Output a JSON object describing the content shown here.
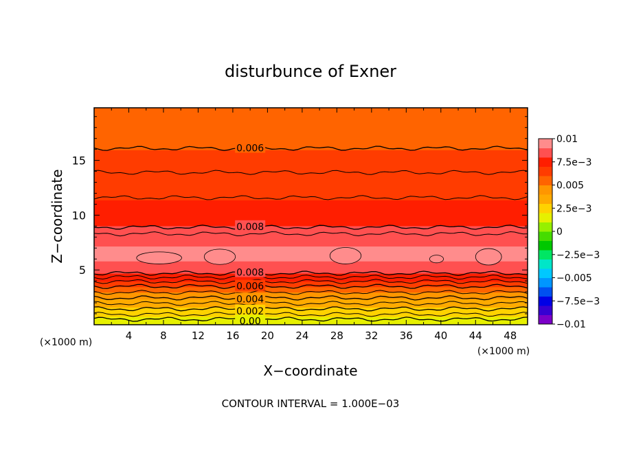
{
  "chart_data": {
    "type": "heatmap",
    "title": "disturbunce of Exner",
    "xlabel": "X−coordinate",
    "ylabel": "Z−coordinate",
    "x_unit": "(×1000 m)",
    "y_unit": "(×1000 m)",
    "footer": "CONTOUR INTERVAL = 1.000E−03",
    "xlim": [
      0,
      50
    ],
    "ylim": [
      0,
      19.8
    ],
    "x_ticks": [
      4,
      8,
      12,
      16,
      20,
      24,
      28,
      32,
      36,
      40,
      44,
      48
    ],
    "y_ticks": [
      5,
      10,
      15
    ],
    "colorbar": {
      "range": [
        -0.01,
        0.01
      ],
      "labels": [
        {
          "value": 0.01,
          "text": "0.01"
        },
        {
          "value": 0.0075,
          "text": "7.5e−3"
        },
        {
          "value": 0.005,
          "text": "0.005"
        },
        {
          "value": 0.0025,
          "text": "2.5e−3"
        },
        {
          "value": 0,
          "text": "0"
        },
        {
          "value": -0.0025,
          "text": "−2.5e−3"
        },
        {
          "value": -0.005,
          "text": "−0.005"
        },
        {
          "value": -0.0075,
          "text": "−7.5e−3"
        },
        {
          "value": -0.01,
          "text": "−0.01"
        }
      ],
      "colors": [
        "#7b00c8",
        "#3700d2",
        "#0000e6",
        "#0050f0",
        "#0096ff",
        "#00c8ff",
        "#00e6c8",
        "#00e664",
        "#00c800",
        "#46dc00",
        "#96f000",
        "#e6f000",
        "#ffd200",
        "#ffaa00",
        "#ff9600",
        "#ff6400",
        "#ff3c00",
        "#ff1e00",
        "#ff5050",
        "#ff8c8c"
      ]
    },
    "profile": [
      {
        "z": 0.0,
        "value": 0.0012
      },
      {
        "z": 1.0,
        "value": 0.0022
      },
      {
        "z": 2.0,
        "value": 0.0035
      },
      {
        "z": 3.0,
        "value": 0.005
      },
      {
        "z": 4.0,
        "value": 0.007
      },
      {
        "z": 5.0,
        "value": 0.0085
      },
      {
        "z": 6.5,
        "value": 0.0094
      },
      {
        "z": 8.0,
        "value": 0.0085
      },
      {
        "z": 10.0,
        "value": 0.0075
      },
      {
        "z": 12.0,
        "value": 0.0068
      },
      {
        "z": 14.0,
        "value": 0.0061
      },
      {
        "z": 16.0,
        "value": 0.006
      },
      {
        "z": 18.0,
        "value": 0.0052
      },
      {
        "z": 19.8,
        "value": 0.005
      }
    ],
    "contours": [
      {
        "level": 0.006,
        "label": "0.006",
        "z": 16.1
      },
      {
        "level": 0.008,
        "label": "0.008",
        "z": 8.9
      },
      {
        "level": 0.008,
        "label": "0.008",
        "z": 4.7
      },
      {
        "level": 0.006,
        "label": "0.006",
        "z": 3.5
      },
      {
        "level": 0.004,
        "label": "0.004",
        "z": 2.45
      },
      {
        "level": 0.002,
        "label": "0.002",
        "z": 1.45
      },
      {
        "level": 0.0,
        "label": "0.00",
        "z": 0.5
      }
    ],
    "extra_contour_z": [
      0.95,
      1.95,
      2.95,
      3.95,
      4.35,
      8.3,
      11.6,
      13.9
    ],
    "highs": [
      {
        "x": 7.5,
        "z": 6.1,
        "rx": 2.6,
        "rz": 0.55
      },
      {
        "x": 14.5,
        "z": 6.2,
        "rx": 1.8,
        "rz": 0.7
      },
      {
        "x": 29.0,
        "z": 6.3,
        "rx": 1.8,
        "rz": 0.75
      },
      {
        "x": 39.5,
        "z": 6.0,
        "rx": 0.8,
        "rz": 0.35
      },
      {
        "x": 45.5,
        "z": 6.2,
        "rx": 1.5,
        "rz": 0.75
      }
    ]
  }
}
